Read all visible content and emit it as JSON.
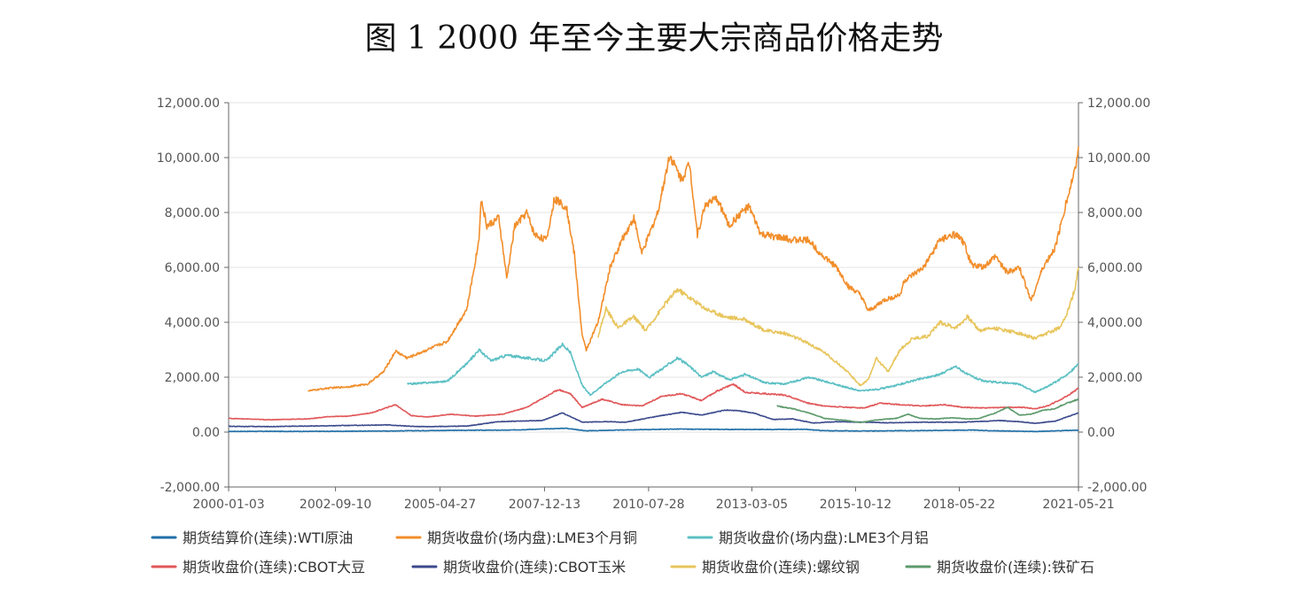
{
  "chart_data": {
    "type": "line",
    "title": "图 1 2000 年至今主要大宗商品价格走势",
    "ylim": [
      -2000,
      12000
    ],
    "y_ticks": [
      "12,000.00",
      "10,000.00",
      "8,000.00",
      "6,000.00",
      "4,000.00",
      "2,000.00",
      "0.00",
      "-2,000.00"
    ],
    "y_tick_values": [
      12000,
      10000,
      8000,
      6000,
      4000,
      2000,
      0,
      -2000
    ],
    "x_range": [
      2000.0,
      2021.39
    ],
    "x_ticks": [
      {
        "label": "2000-01-03",
        "t": 2000.0
      },
      {
        "label": "2002-09-10",
        "t": 2002.69
      },
      {
        "label": "2005-04-27",
        "t": 2005.32
      },
      {
        "label": "2007-12-13",
        "t": 2007.95
      },
      {
        "label": "2010-07-28",
        "t": 2010.57
      },
      {
        "label": "2013-03-05",
        "t": 2013.17
      },
      {
        "label": "2015-10-12",
        "t": 2015.78
      },
      {
        "label": "2018-05-22",
        "t": 2018.39
      },
      {
        "label": "2021-05-21",
        "t": 2021.39
      }
    ],
    "legend": "bottom",
    "series": [
      {
        "name": "期货结算价(连续):WTI原油",
        "color": "#1f6fa8",
        "points": [
          [
            2000.0,
            25
          ],
          [
            2001.0,
            28
          ],
          [
            2002.0,
            25
          ],
          [
            2003.0,
            31
          ],
          [
            2004.0,
            40
          ],
          [
            2005.0,
            55
          ],
          [
            2006.0,
            66
          ],
          [
            2007.0,
            70
          ],
          [
            2008.5,
            140
          ],
          [
            2009.0,
            45
          ],
          [
            2010.0,
            80
          ],
          [
            2011.3,
            110
          ],
          [
            2012.0,
            100
          ],
          [
            2013.0,
            95
          ],
          [
            2014.5,
            100
          ],
          [
            2015.0,
            50
          ],
          [
            2016.0,
            40
          ],
          [
            2017.0,
            50
          ],
          [
            2018.8,
            75
          ],
          [
            2019.0,
            55
          ],
          [
            2020.3,
            20
          ],
          [
            2021.0,
            55
          ],
          [
            2021.39,
            65
          ]
        ]
      },
      {
        "name": "期货收盘价(场内盘):LME3个月铜",
        "color": "#f28e2b",
        "points": [
          [
            2002.0,
            1500
          ],
          [
            2002.5,
            1600
          ],
          [
            2003.0,
            1650
          ],
          [
            2003.5,
            1750
          ],
          [
            2003.9,
            2200
          ],
          [
            2004.2,
            2950
          ],
          [
            2004.5,
            2700
          ],
          [
            2005.0,
            3000
          ],
          [
            2005.5,
            3300
          ],
          [
            2006.0,
            4500
          ],
          [
            2006.3,
            7000
          ],
          [
            2006.35,
            8500
          ],
          [
            2006.5,
            7500
          ],
          [
            2006.8,
            7800
          ],
          [
            2007.0,
            5600
          ],
          [
            2007.2,
            7500
          ],
          [
            2007.5,
            8000
          ],
          [
            2007.7,
            7200
          ],
          [
            2008.0,
            7000
          ],
          [
            2008.2,
            8500
          ],
          [
            2008.5,
            8200
          ],
          [
            2008.7,
            6500
          ],
          [
            2008.9,
            3500
          ],
          [
            2009.0,
            3000
          ],
          [
            2009.3,
            4000
          ],
          [
            2009.6,
            6000
          ],
          [
            2009.9,
            7000
          ],
          [
            2010.2,
            7800
          ],
          [
            2010.4,
            6500
          ],
          [
            2010.8,
            8000
          ],
          [
            2011.1,
            10100
          ],
          [
            2011.4,
            9200
          ],
          [
            2011.6,
            9800
          ],
          [
            2011.8,
            7200
          ],
          [
            2012.0,
            8300
          ],
          [
            2012.3,
            8500
          ],
          [
            2012.6,
            7500
          ],
          [
            2012.9,
            8000
          ],
          [
            2013.1,
            8200
          ],
          [
            2013.4,
            7200
          ],
          [
            2013.8,
            7100
          ],
          [
            2014.2,
            7000
          ],
          [
            2014.6,
            7000
          ],
          [
            2014.9,
            6500
          ],
          [
            2015.3,
            6000
          ],
          [
            2015.6,
            5300
          ],
          [
            2015.9,
            5000
          ],
          [
            2016.1,
            4400
          ],
          [
            2016.5,
            4800
          ],
          [
            2016.9,
            5000
          ],
          [
            2017.0,
            5500
          ],
          [
            2017.5,
            6000
          ],
          [
            2017.9,
            7000
          ],
          [
            2018.3,
            7200
          ],
          [
            2018.5,
            6900
          ],
          [
            2018.7,
            6100
          ],
          [
            2019.0,
            6000
          ],
          [
            2019.3,
            6400
          ],
          [
            2019.6,
            5800
          ],
          [
            2019.9,
            6000
          ],
          [
            2020.2,
            4800
          ],
          [
            2020.5,
            6000
          ],
          [
            2020.8,
            6700
          ],
          [
            2021.0,
            7900
          ],
          [
            2021.2,
            9000
          ],
          [
            2021.3,
            9500
          ],
          [
            2021.39,
            10400
          ]
        ]
      },
      {
        "name": "期货收盘价(场内盘):LME3个月铝",
        "color": "#5bc0c4",
        "points": [
          [
            2004.5,
            1750
          ],
          [
            2005.0,
            1800
          ],
          [
            2005.5,
            1850
          ],
          [
            2006.0,
            2500
          ],
          [
            2006.3,
            3000
          ],
          [
            2006.6,
            2600
          ],
          [
            2007.0,
            2800
          ],
          [
            2007.5,
            2700
          ],
          [
            2008.0,
            2600
          ],
          [
            2008.4,
            3200
          ],
          [
            2008.6,
            2900
          ],
          [
            2008.9,
            1700
          ],
          [
            2009.1,
            1350
          ],
          [
            2009.5,
            1800
          ],
          [
            2009.9,
            2200
          ],
          [
            2010.3,
            2300
          ],
          [
            2010.6,
            2000
          ],
          [
            2011.0,
            2400
          ],
          [
            2011.3,
            2700
          ],
          [
            2011.6,
            2400
          ],
          [
            2011.9,
            2000
          ],
          [
            2012.2,
            2200
          ],
          [
            2012.6,
            1900
          ],
          [
            2013.0,
            2100
          ],
          [
            2013.5,
            1800
          ],
          [
            2014.0,
            1750
          ],
          [
            2014.6,
            2000
          ],
          [
            2015.0,
            1850
          ],
          [
            2015.5,
            1650
          ],
          [
            2015.9,
            1500
          ],
          [
            2016.3,
            1550
          ],
          [
            2016.8,
            1700
          ],
          [
            2017.3,
            1900
          ],
          [
            2017.9,
            2100
          ],
          [
            2018.3,
            2400
          ],
          [
            2018.6,
            2100
          ],
          [
            2019.0,
            1850
          ],
          [
            2019.5,
            1800
          ],
          [
            2019.9,
            1750
          ],
          [
            2020.3,
            1450
          ],
          [
            2020.6,
            1650
          ],
          [
            2020.9,
            1900
          ],
          [
            2021.2,
            2200
          ],
          [
            2021.39,
            2500
          ]
        ]
      },
      {
        "name": "期货收盘价(连续):CBOT大豆",
        "color": "#e15759",
        "points": [
          [
            2000.0,
            500
          ],
          [
            2001.0,
            450
          ],
          [
            2002.0,
            480
          ],
          [
            2002.5,
            560
          ],
          [
            2003.0,
            580
          ],
          [
            2003.6,
            700
          ],
          [
            2004.2,
            1000
          ],
          [
            2004.6,
            600
          ],
          [
            2005.0,
            550
          ],
          [
            2005.6,
            650
          ],
          [
            2006.2,
            580
          ],
          [
            2006.9,
            650
          ],
          [
            2007.5,
            900
          ],
          [
            2008.3,
            1550
          ],
          [
            2008.6,
            1400
          ],
          [
            2008.9,
            900
          ],
          [
            2009.4,
            1200
          ],
          [
            2009.9,
            1000
          ],
          [
            2010.4,
            950
          ],
          [
            2010.9,
            1300
          ],
          [
            2011.4,
            1400
          ],
          [
            2011.9,
            1150
          ],
          [
            2012.3,
            1500
          ],
          [
            2012.7,
            1750
          ],
          [
            2013.0,
            1450
          ],
          [
            2013.5,
            1400
          ],
          [
            2014.0,
            1350
          ],
          [
            2014.6,
            1050
          ],
          [
            2015.0,
            950
          ],
          [
            2015.6,
            900
          ],
          [
            2016.0,
            880
          ],
          [
            2016.4,
            1050
          ],
          [
            2016.9,
            1000
          ],
          [
            2017.5,
            950
          ],
          [
            2018.0,
            1000
          ],
          [
            2018.5,
            900
          ],
          [
            2019.0,
            880
          ],
          [
            2019.5,
            900
          ],
          [
            2020.0,
            900
          ],
          [
            2020.3,
            850
          ],
          [
            2020.6,
            950
          ],
          [
            2020.9,
            1150
          ],
          [
            2021.2,
            1400
          ],
          [
            2021.39,
            1600
          ]
        ]
      },
      {
        "name": "期货收盘价(连续):CBOT玉米",
        "color": "#3b4a8c",
        "points": [
          [
            2000.0,
            210
          ],
          [
            2001.0,
            200
          ],
          [
            2002.0,
            220
          ],
          [
            2003.0,
            240
          ],
          [
            2004.0,
            260
          ],
          [
            2004.6,
            210
          ],
          [
            2005.0,
            200
          ],
          [
            2006.0,
            220
          ],
          [
            2006.8,
            380
          ],
          [
            2007.3,
            400
          ],
          [
            2007.9,
            420
          ],
          [
            2008.4,
            700
          ],
          [
            2008.9,
            360
          ],
          [
            2009.5,
            380
          ],
          [
            2010.0,
            360
          ],
          [
            2010.8,
            580
          ],
          [
            2011.4,
            720
          ],
          [
            2011.9,
            620
          ],
          [
            2012.5,
            800
          ],
          [
            2012.8,
            780
          ],
          [
            2013.2,
            700
          ],
          [
            2013.7,
            460
          ],
          [
            2014.2,
            480
          ],
          [
            2014.7,
            330
          ],
          [
            2015.3,
            380
          ],
          [
            2016.0,
            360
          ],
          [
            2016.6,
            340
          ],
          [
            2017.5,
            360
          ],
          [
            2018.5,
            360
          ],
          [
            2019.4,
            420
          ],
          [
            2019.9,
            380
          ],
          [
            2020.3,
            320
          ],
          [
            2020.8,
            400
          ],
          [
            2021.1,
            550
          ],
          [
            2021.39,
            700
          ]
        ]
      },
      {
        "name": "期货收盘价(连续):螺纹钢",
        "color": "#e8c55c",
        "points": [
          [
            2009.3,
            3500
          ],
          [
            2009.5,
            4500
          ],
          [
            2009.8,
            3800
          ],
          [
            2010.2,
            4200
          ],
          [
            2010.5,
            3700
          ],
          [
            2011.0,
            4700
          ],
          [
            2011.3,
            5200
          ],
          [
            2011.7,
            4800
          ],
          [
            2012.0,
            4500
          ],
          [
            2012.5,
            4200
          ],
          [
            2013.0,
            4100
          ],
          [
            2013.5,
            3700
          ],
          [
            2014.0,
            3600
          ],
          [
            2014.5,
            3300
          ],
          [
            2015.0,
            2900
          ],
          [
            2015.5,
            2300
          ],
          [
            2015.9,
            1700
          ],
          [
            2016.1,
            1900
          ],
          [
            2016.3,
            2700
          ],
          [
            2016.6,
            2200
          ],
          [
            2016.9,
            3000
          ],
          [
            2017.2,
            3400
          ],
          [
            2017.6,
            3500
          ],
          [
            2017.9,
            4000
          ],
          [
            2018.3,
            3800
          ],
          [
            2018.6,
            4200
          ],
          [
            2018.9,
            3700
          ],
          [
            2019.2,
            3800
          ],
          [
            2019.6,
            3700
          ],
          [
            2019.9,
            3600
          ],
          [
            2020.3,
            3400
          ],
          [
            2020.6,
            3600
          ],
          [
            2020.9,
            3800
          ],
          [
            2021.1,
            4300
          ],
          [
            2021.3,
            5200
          ],
          [
            2021.39,
            6000
          ]
        ]
      },
      {
        "name": "期货收盘价(连续):铁矿石",
        "color": "#5c9a6b",
        "points": [
          [
            2013.8,
            950
          ],
          [
            2014.2,
            850
          ],
          [
            2014.6,
            700
          ],
          [
            2015.0,
            500
          ],
          [
            2015.5,
            430
          ],
          [
            2015.9,
            350
          ],
          [
            2016.3,
            440
          ],
          [
            2016.8,
            500
          ],
          [
            2017.1,
            650
          ],
          [
            2017.4,
            500
          ],
          [
            2017.8,
            480
          ],
          [
            2018.2,
            520
          ],
          [
            2018.6,
            480
          ],
          [
            2018.9,
            500
          ],
          [
            2019.3,
            700
          ],
          [
            2019.6,
            900
          ],
          [
            2019.9,
            620
          ],
          [
            2020.2,
            650
          ],
          [
            2020.5,
            800
          ],
          [
            2020.8,
            850
          ],
          [
            2021.0,
            1000
          ],
          [
            2021.2,
            1100
          ],
          [
            2021.39,
            1200
          ]
        ]
      }
    ]
  }
}
